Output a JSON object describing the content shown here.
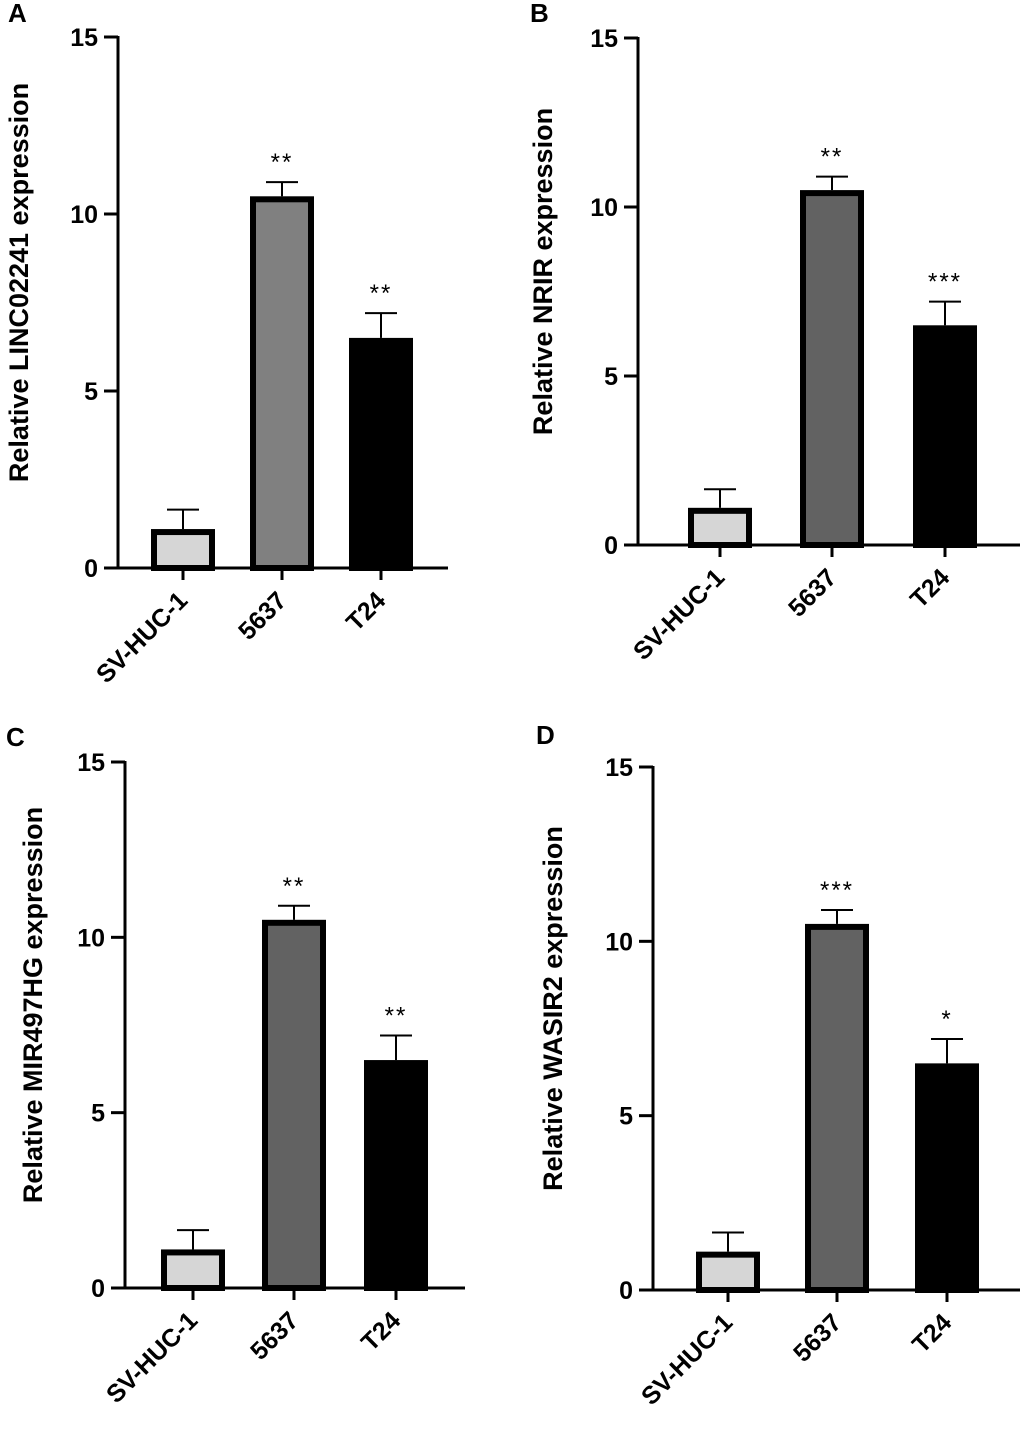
{
  "figure": {
    "panels": [
      "A",
      "B",
      "C",
      "D"
    ]
  },
  "colors": {
    "control": "#d6d6d6",
    "cell_5637_A": "#808080",
    "cell_5637": "#626262",
    "t24": "#000000",
    "axis": "#000000"
  },
  "chart_data": [
    {
      "type": "bar",
      "panel_label": "A",
      "title": "",
      "xlabel": "",
      "ylabel": "Relative LINC02241 expression",
      "categories": [
        "SV-HUC-1",
        "5637",
        "T24"
      ],
      "values": [
        1.1,
        10.5,
        6.5
      ],
      "error_upper": [
        1.65,
        10.9,
        7.2
      ],
      "significance": [
        "",
        "**",
        "**"
      ],
      "ylim": [
        0,
        15
      ],
      "yticks": [
        "0",
        "5",
        "10",
        "15"
      ],
      "grid": false,
      "bar_colors": [
        "#d6d6d6",
        "#808080",
        "#000000"
      ]
    },
    {
      "type": "bar",
      "panel_label": "B",
      "title": "",
      "xlabel": "",
      "ylabel": "Relative NRIR expression",
      "categories": [
        "SV-HUC-1",
        "5637",
        "T24"
      ],
      "values": [
        1.1,
        10.5,
        6.5
      ],
      "error_upper": [
        1.65,
        10.9,
        7.2
      ],
      "significance": [
        "",
        "**",
        "***"
      ],
      "ylim": [
        0,
        15
      ],
      "yticks": [
        "0",
        "5",
        "10",
        "15"
      ],
      "grid": false,
      "bar_colors": [
        "#d6d6d6",
        "#626262",
        "#000000"
      ]
    },
    {
      "type": "bar",
      "panel_label": "C",
      "title": "",
      "xlabel": "",
      "ylabel": "Relative MIR497HG expression",
      "categories": [
        "SV-HUC-1",
        "5637",
        "T24"
      ],
      "values": [
        1.1,
        10.5,
        6.5
      ],
      "error_upper": [
        1.65,
        10.9,
        7.2
      ],
      "significance": [
        "",
        "**",
        "**"
      ],
      "ylim": [
        0,
        15
      ],
      "yticks": [
        "0",
        "5",
        "10",
        "15"
      ],
      "grid": false,
      "bar_colors": [
        "#d6d6d6",
        "#626262",
        "#000000"
      ]
    },
    {
      "type": "bar",
      "panel_label": "D",
      "title": "",
      "xlabel": "",
      "ylabel": "Relative WASIR2 expression",
      "categories": [
        "SV-HUC-1",
        "5637",
        "T24"
      ],
      "values": [
        1.1,
        10.5,
        6.5
      ],
      "error_upper": [
        1.65,
        10.9,
        7.2
      ],
      "significance": [
        "",
        "***",
        "*"
      ],
      "ylim": [
        0,
        15
      ],
      "yticks": [
        "0",
        "5",
        "10",
        "15"
      ],
      "grid": false,
      "bar_colors": [
        "#d6d6d6",
        "#626262",
        "#000000"
      ]
    }
  ]
}
